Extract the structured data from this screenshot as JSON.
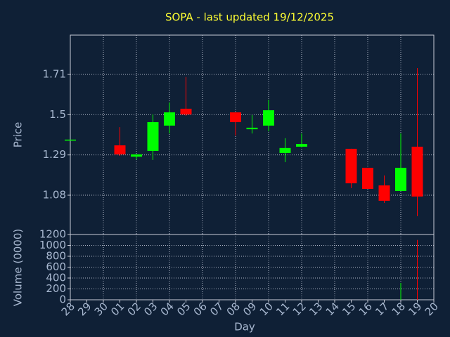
{
  "chart_data": [
    {
      "type": "candlestick",
      "title": "SOPA - last updated 19/12/2025",
      "ylabel": "Price",
      "open": [
        1.37,
        null,
        null,
        1.34,
        1.281,
        1.311,
        1.443,
        1.531,
        null,
        null,
        1.512,
        1.424,
        1.443,
        1.3,
        1.333,
        null,
        null,
        1.322,
        1.223,
        1.131,
        1.102,
        1.333,
        null
      ],
      "high": [
        1.37,
        null,
        null,
        1.435,
        1.293,
        1.501,
        1.564,
        1.696,
        null,
        null,
        1.512,
        1.498,
        1.578,
        1.377,
        1.402,
        null,
        null,
        1.322,
        1.223,
        1.183,
        1.402,
        1.743,
        null
      ],
      "low": [
        1.37,
        null,
        null,
        1.285,
        1.267,
        1.263,
        1.402,
        1.494,
        null,
        null,
        1.391,
        1.402,
        1.413,
        1.252,
        1.329,
        null,
        null,
        1.117,
        1.113,
        1.04,
        1.102,
        0.97,
        null
      ],
      "close": [
        1.37,
        null,
        null,
        1.293,
        1.293,
        1.461,
        1.512,
        1.501,
        null,
        null,
        1.461,
        1.432,
        1.523,
        1.326,
        1.347,
        null,
        null,
        1.142,
        1.113,
        1.051,
        1.223,
        1.073,
        null
      ],
      "up_color": "#00ff00",
      "down_color": "#ff0000",
      "ylim": [
        0.875,
        1.915
      ],
      "yticks": [
        1.08,
        1.29,
        1.5,
        1.71
      ],
      "grid": true
    },
    {
      "type": "bar",
      "ylabel": "Volume (0000)",
      "xlabel": "Day",
      "categories": [
        "28",
        "29",
        "30",
        "01",
        "02",
        "03",
        "04",
        "05",
        "06",
        "07",
        "08",
        "09",
        "10",
        "11",
        "12",
        "13",
        "14",
        "15",
        "16",
        "17",
        "18",
        "19",
        "20"
      ],
      "values": [
        0,
        null,
        null,
        0,
        0,
        0,
        0,
        0,
        null,
        null,
        0,
        0,
        0,
        0,
        0,
        null,
        null,
        0,
        0,
        0,
        310,
        1100,
        null
      ],
      "ylim": [
        0,
        1200
      ],
      "yticks": [
        0,
        200,
        400,
        600,
        800,
        1000,
        1200
      ],
      "grid": true
    }
  ]
}
